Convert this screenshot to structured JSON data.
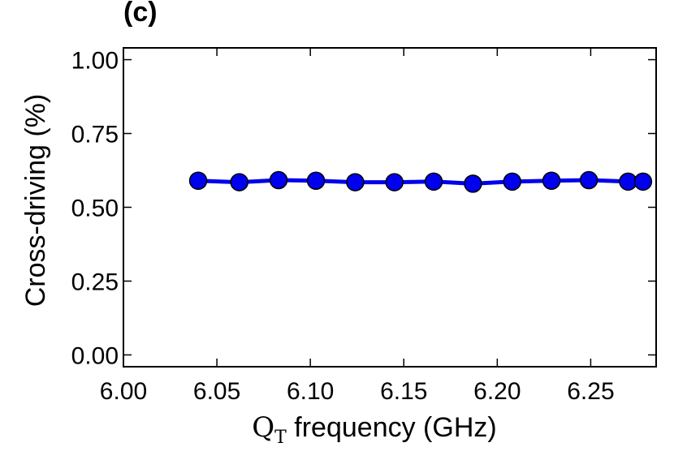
{
  "panel_label": "(c)",
  "chart_data": {
    "type": "line",
    "xlabel": {
      "symbol": "Q",
      "subscript": "T",
      "rest": " frequency (GHz)"
    },
    "ylabel": "Cross-driving (%)",
    "xlim": [
      6.0,
      6.285
    ],
    "ylim": [
      -0.04,
      1.04
    ],
    "xticks": [
      6.0,
      6.05,
      6.1,
      6.15,
      6.2,
      6.25
    ],
    "xtick_labels": [
      "6.00",
      "6.05",
      "6.10",
      "6.15",
      "6.20",
      "6.25"
    ],
    "yticks": [
      0.0,
      0.25,
      0.5,
      0.75,
      1.0
    ],
    "ytick_labels": [
      "0.00",
      "0.25",
      "0.50",
      "0.75",
      "1.00"
    ],
    "grid": false,
    "series": [
      {
        "line_color": "#0000ee",
        "marker_color": "#0000ee",
        "x": [
          6.04,
          6.062,
          6.083,
          6.103,
          6.124,
          6.145,
          6.166,
          6.187,
          6.208,
          6.229,
          6.249,
          6.27,
          6.278
        ],
        "y": [
          0.59,
          0.585,
          0.592,
          0.59,
          0.585,
          0.585,
          0.587,
          0.58,
          0.587,
          0.59,
          0.592,
          0.587,
          0.587
        ]
      }
    ]
  }
}
